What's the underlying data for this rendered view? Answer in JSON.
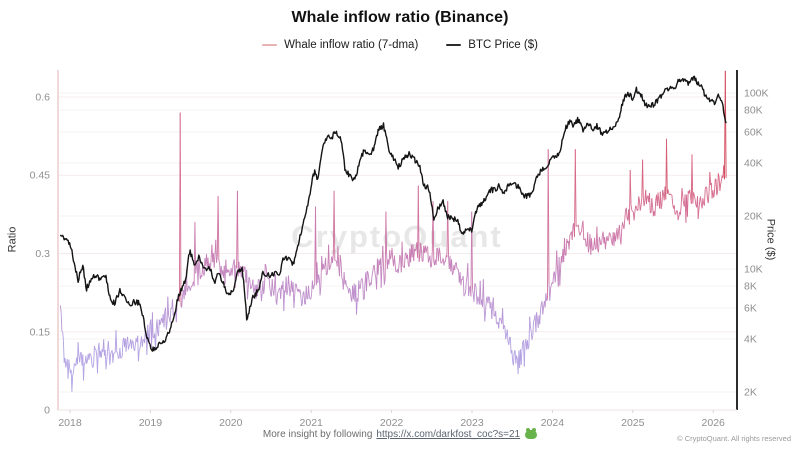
{
  "title": "Whale inflow ratio (Binance)",
  "watermark": "CryptoQuant",
  "legend": {
    "items": [
      {
        "label": "Whale inflow ratio (7-dma)",
        "color": "#e7b4b2"
      },
      {
        "label": "BTC Price ($)",
        "color": "#2b2b2b"
      }
    ]
  },
  "axes": {
    "left": {
      "title": "Ratio",
      "ticks": [
        {
          "label": "0",
          "v": 0
        },
        {
          "label": "0.15",
          "v": 0.15
        },
        {
          "label": "0.3",
          "v": 0.3
        },
        {
          "label": "0.45",
          "v": 0.45
        },
        {
          "label": "0.6",
          "v": 0.6
        }
      ]
    },
    "right": {
      "title": "Price ($)",
      "scale": "log",
      "ticks": [
        {
          "label": "2K",
          "v": 2000
        },
        {
          "label": "4K",
          "v": 4000
        },
        {
          "label": "6K",
          "v": 6000
        },
        {
          "label": "8K",
          "v": 8000
        },
        {
          "label": "10K",
          "v": 10000
        },
        {
          "label": "20K",
          "v": 20000
        },
        {
          "label": "40K",
          "v": 40000
        },
        {
          "label": "60K",
          "v": 60000
        },
        {
          "label": "80K",
          "v": 80000
        },
        {
          "label": "100K",
          "v": 100000
        }
      ]
    },
    "x": {
      "ticks": [
        {
          "label": "2018",
          "v": 2018
        },
        {
          "label": "2019",
          "v": 2019
        },
        {
          "label": "2020",
          "v": 2020
        },
        {
          "label": "2021",
          "v": 2021
        },
        {
          "label": "2022",
          "v": 2022
        },
        {
          "label": "2023",
          "v": 2023
        },
        {
          "label": "2024",
          "v": 2024
        },
        {
          "label": "2025",
          "v": 2025
        },
        {
          "label": "2026",
          "v": 2026
        }
      ]
    }
  },
  "footer": {
    "prefix": "More insight by following",
    "link_text": "https://x.com/darkfost_coc?s=21",
    "emoji_name": "frog-emoji",
    "copyright": "© CryptoQuant. All rights reserved"
  },
  "colors": {
    "title_text": "#111111",
    "grid_left": "#f4ecec",
    "grid_right": "#f7f2f2",
    "axis_left_line": "#f0d9d9",
    "axis_right_line": "#141414",
    "baseline": "#ece5e5",
    "tick_mark": "#ddd4d4",
    "tick_text": "#8f8f8f",
    "axis_title_text": "#333333",
    "watermark_text": "#e7e7e7",
    "price_line": "#141414",
    "footer_text": "#6d6d6d",
    "link_text": "#5c6672",
    "copyright_text": "#9a9a9a",
    "frog_green": "#69b34c"
  },
  "chart_data": {
    "type": "line",
    "title": "Whale inflow ratio (Binance)",
    "x_unit": "decimal_year",
    "x_range": [
      2017.88,
      2026.16
    ],
    "left_ylim": [
      0,
      0.652
    ],
    "right_ylim_log": [
      1580,
      135000
    ],
    "legend_position": "top",
    "grid": "faint-horizontal",
    "series": [
      {
        "name": "Whale inflow ratio (7-dma)",
        "axis": "left",
        "style": "value-gradient",
        "points": [
          [
            2017.88,
            0.2
          ],
          [
            2017.94,
            0.1
          ],
          [
            2018.02,
            0.06
          ],
          [
            2018.1,
            0.1
          ],
          [
            2018.2,
            0.085
          ],
          [
            2018.3,
            0.1
          ],
          [
            2018.4,
            0.12
          ],
          [
            2018.5,
            0.1
          ],
          [
            2018.6,
            0.115
          ],
          [
            2018.7,
            0.12
          ],
          [
            2018.8,
            0.115
          ],
          [
            2018.9,
            0.13
          ],
          [
            2019.0,
            0.155
          ],
          [
            2019.1,
            0.16
          ],
          [
            2019.2,
            0.18
          ],
          [
            2019.3,
            0.2
          ],
          [
            2019.4,
            0.22
          ],
          [
            2019.5,
            0.24
          ],
          [
            2019.6,
            0.27
          ],
          [
            2019.7,
            0.28
          ],
          [
            2019.8,
            0.29
          ],
          [
            2019.9,
            0.27
          ],
          [
            2020.0,
            0.27
          ],
          [
            2020.1,
            0.27
          ],
          [
            2020.2,
            0.25
          ],
          [
            2020.3,
            0.23
          ],
          [
            2020.4,
            0.24
          ],
          [
            2020.5,
            0.24
          ],
          [
            2020.6,
            0.22
          ],
          [
            2020.7,
            0.24
          ],
          [
            2020.8,
            0.23
          ],
          [
            2020.9,
            0.21
          ],
          [
            2021.0,
            0.23
          ],
          [
            2021.1,
            0.25
          ],
          [
            2021.2,
            0.28
          ],
          [
            2021.3,
            0.29
          ],
          [
            2021.4,
            0.26
          ],
          [
            2021.5,
            0.22
          ],
          [
            2021.6,
            0.23
          ],
          [
            2021.7,
            0.25
          ],
          [
            2021.8,
            0.27
          ],
          [
            2021.9,
            0.28
          ],
          [
            2022.0,
            0.29
          ],
          [
            2022.1,
            0.28
          ],
          [
            2022.2,
            0.29
          ],
          [
            2022.3,
            0.305
          ],
          [
            2022.4,
            0.3
          ],
          [
            2022.5,
            0.29
          ],
          [
            2022.6,
            0.295
          ],
          [
            2022.7,
            0.28
          ],
          [
            2022.8,
            0.265
          ],
          [
            2022.9,
            0.245
          ],
          [
            2023.0,
            0.23
          ],
          [
            2023.1,
            0.215
          ],
          [
            2023.2,
            0.2
          ],
          [
            2023.3,
            0.185
          ],
          [
            2023.4,
            0.15
          ],
          [
            2023.5,
            0.115
          ],
          [
            2023.58,
            0.095
          ],
          [
            2023.66,
            0.12
          ],
          [
            2023.74,
            0.15
          ],
          [
            2023.82,
            0.175
          ],
          [
            2023.9,
            0.2
          ],
          [
            2023.98,
            0.235
          ],
          [
            2024.06,
            0.27
          ],
          [
            2024.14,
            0.3
          ],
          [
            2024.22,
            0.33
          ],
          [
            2024.3,
            0.355
          ],
          [
            2024.38,
            0.345
          ],
          [
            2024.46,
            0.315
          ],
          [
            2024.54,
            0.31
          ],
          [
            2024.62,
            0.325
          ],
          [
            2024.7,
            0.335
          ],
          [
            2024.78,
            0.33
          ],
          [
            2024.86,
            0.35
          ],
          [
            2024.94,
            0.375
          ],
          [
            2025.02,
            0.38
          ],
          [
            2025.1,
            0.4
          ],
          [
            2025.18,
            0.415
          ],
          [
            2025.26,
            0.39
          ],
          [
            2025.34,
            0.4
          ],
          [
            2025.42,
            0.415
          ],
          [
            2025.5,
            0.39
          ],
          [
            2025.58,
            0.38
          ],
          [
            2025.66,
            0.4
          ],
          [
            2025.74,
            0.41
          ],
          [
            2025.82,
            0.39
          ],
          [
            2025.9,
            0.41
          ],
          [
            2025.98,
            0.42
          ],
          [
            2026.06,
            0.43
          ],
          [
            2026.12,
            0.44
          ],
          [
            2026.16,
            0.46
          ]
        ],
        "spikes": [
          [
            2019.37,
            0.57
          ],
          [
            2019.55,
            0.36
          ],
          [
            2019.84,
            0.41
          ],
          [
            2020.08,
            0.42
          ],
          [
            2021.05,
            0.39
          ],
          [
            2021.28,
            0.42
          ],
          [
            2021.93,
            0.38
          ],
          [
            2022.33,
            0.43
          ],
          [
            2022.52,
            0.4
          ],
          [
            2022.7,
            0.4
          ],
          [
            2023.0,
            0.38
          ],
          [
            2023.95,
            0.5
          ],
          [
            2024.28,
            0.5
          ],
          [
            2024.97,
            0.46
          ],
          [
            2025.12,
            0.48
          ],
          [
            2025.42,
            0.52
          ],
          [
            2025.74,
            0.49
          ],
          [
            2026.15,
            0.65
          ]
        ]
      },
      {
        "name": "BTC Price ($)",
        "axis": "right",
        "unit": "USD thousands",
        "color": "#141414",
        "points": [
          [
            2017.88,
            15.5
          ],
          [
            2018.0,
            14.0
          ],
          [
            2018.05,
            11.0
          ],
          [
            2018.1,
            8.6
          ],
          [
            2018.16,
            10.6
          ],
          [
            2018.2,
            7.6
          ],
          [
            2018.28,
            9.0
          ],
          [
            2018.36,
            8.9
          ],
          [
            2018.44,
            9.3
          ],
          [
            2018.5,
            6.7
          ],
          [
            2018.56,
            6.4
          ],
          [
            2018.62,
            7.5
          ],
          [
            2018.68,
            7.0
          ],
          [
            2018.74,
            6.3
          ],
          [
            2018.8,
            6.5
          ],
          [
            2018.86,
            6.4
          ],
          [
            2018.9,
            5.6
          ],
          [
            2018.96,
            4.0
          ],
          [
            2019.02,
            3.5
          ],
          [
            2019.1,
            3.7
          ],
          [
            2019.2,
            4.0
          ],
          [
            2019.28,
            5.1
          ],
          [
            2019.36,
            7.2
          ],
          [
            2019.44,
            8.6
          ],
          [
            2019.49,
            12.8
          ],
          [
            2019.54,
            10.7
          ],
          [
            2019.6,
            11.8
          ],
          [
            2019.66,
            10.0
          ],
          [
            2019.74,
            10.2
          ],
          [
            2019.8,
            8.2
          ],
          [
            2019.84,
            9.5
          ],
          [
            2019.9,
            8.5
          ],
          [
            2019.96,
            7.2
          ],
          [
            2020.02,
            7.3
          ],
          [
            2020.08,
            9.4
          ],
          [
            2020.14,
            10.2
          ],
          [
            2020.2,
            5.0
          ],
          [
            2020.26,
            6.7
          ],
          [
            2020.34,
            7.5
          ],
          [
            2020.4,
            9.6
          ],
          [
            2020.48,
            9.1
          ],
          [
            2020.54,
            9.4
          ],
          [
            2020.6,
            9.2
          ],
          [
            2020.66,
            11.6
          ],
          [
            2020.72,
            11.4
          ],
          [
            2020.78,
            10.5
          ],
          [
            2020.84,
            13.8
          ],
          [
            2020.9,
            18.0
          ],
          [
            2020.96,
            23.5
          ],
          [
            2021.0,
            29.5
          ],
          [
            2021.04,
            36.0
          ],
          [
            2021.08,
            32.0
          ],
          [
            2021.14,
            49.0
          ],
          [
            2021.2,
            57.5
          ],
          [
            2021.24,
            53.0
          ],
          [
            2021.3,
            61.0
          ],
          [
            2021.36,
            57.0
          ],
          [
            2021.42,
            36.5
          ],
          [
            2021.48,
            34.0
          ],
          [
            2021.54,
            31.8
          ],
          [
            2021.6,
            40.0
          ],
          [
            2021.66,
            47.5
          ],
          [
            2021.72,
            44.5
          ],
          [
            2021.78,
            48.0
          ],
          [
            2021.84,
            62.0
          ],
          [
            2021.9,
            65.5
          ],
          [
            2021.96,
            48.5
          ],
          [
            2022.02,
            42.5
          ],
          [
            2022.08,
            38.0
          ],
          [
            2022.14,
            41.5
          ],
          [
            2022.22,
            45.5
          ],
          [
            2022.28,
            42.0
          ],
          [
            2022.34,
            39.5
          ],
          [
            2022.4,
            29.5
          ],
          [
            2022.46,
            29.0
          ],
          [
            2022.52,
            19.2
          ],
          [
            2022.58,
            22.3
          ],
          [
            2022.64,
            24.0
          ],
          [
            2022.7,
            19.8
          ],
          [
            2022.76,
            19.3
          ],
          [
            2022.82,
            19.2
          ],
          [
            2022.87,
            15.9
          ],
          [
            2022.94,
            16.9
          ],
          [
            2023.0,
            16.6
          ],
          [
            2023.04,
            21.0
          ],
          [
            2023.1,
            23.0
          ],
          [
            2023.16,
            24.8
          ],
          [
            2023.22,
            28.0
          ],
          [
            2023.28,
            28.3
          ],
          [
            2023.34,
            29.8
          ],
          [
            2023.4,
            26.9
          ],
          [
            2023.46,
            30.2
          ],
          [
            2023.52,
            30.5
          ],
          [
            2023.58,
            29.0
          ],
          [
            2023.64,
            25.8
          ],
          [
            2023.7,
            26.1
          ],
          [
            2023.76,
            27.5
          ],
          [
            2023.82,
            34.6
          ],
          [
            2023.88,
            36.8
          ],
          [
            2023.94,
            37.8
          ],
          [
            2024.0,
            43.8
          ],
          [
            2024.04,
            42.6
          ],
          [
            2024.1,
            48.0
          ],
          [
            2024.16,
            62.0
          ],
          [
            2024.22,
            70.0
          ],
          [
            2024.26,
            66.0
          ],
          [
            2024.32,
            70.5
          ],
          [
            2024.38,
            61.5
          ],
          [
            2024.44,
            67.0
          ],
          [
            2024.5,
            61.2
          ],
          [
            2024.56,
            65.0
          ],
          [
            2024.62,
            57.5
          ],
          [
            2024.68,
            60.5
          ],
          [
            2024.74,
            63.5
          ],
          [
            2024.8,
            66.5
          ],
          [
            2024.84,
            75.0
          ],
          [
            2024.88,
            91.0
          ],
          [
            2024.94,
            99.5
          ],
          [
            2025.0,
            93.5
          ],
          [
            2025.04,
            104.5
          ],
          [
            2025.1,
            97.5
          ],
          [
            2025.16,
            86.0
          ],
          [
            2025.22,
            83.5
          ],
          [
            2025.28,
            87.5
          ],
          [
            2025.34,
            94.5
          ],
          [
            2025.4,
            103.5
          ],
          [
            2025.46,
            105.0
          ],
          [
            2025.52,
            108.0
          ],
          [
            2025.58,
            118.0
          ],
          [
            2025.64,
            116.0
          ],
          [
            2025.7,
            113.5
          ],
          [
            2025.76,
            123.5
          ],
          [
            2025.82,
            112.0
          ],
          [
            2025.86,
            110.5
          ],
          [
            2025.9,
            96.0
          ],
          [
            2025.96,
            91.5
          ],
          [
            2026.02,
            88.0
          ],
          [
            2026.06,
            95.5
          ],
          [
            2026.1,
            92.0
          ],
          [
            2026.13,
            78.0
          ],
          [
            2026.16,
            65.0
          ]
        ]
      }
    ],
    "color_ramp": [
      [
        0.06,
        "#b3a6e6"
      ],
      [
        0.14,
        "#b39fe0"
      ],
      [
        0.2,
        "#ba93d2"
      ],
      [
        0.26,
        "#c286c0"
      ],
      [
        0.32,
        "#cb79ab"
      ],
      [
        0.38,
        "#d36f96"
      ],
      [
        0.44,
        "#d86683"
      ],
      [
        0.5,
        "#d6586c"
      ],
      [
        0.57,
        "#d04453"
      ],
      [
        0.65,
        "#cb2e36"
      ]
    ],
    "noise": {
      "seed": 11,
      "ratio_amp": 0.02,
      "price_log_amp": 0.016,
      "samples_per_year": 104
    }
  }
}
